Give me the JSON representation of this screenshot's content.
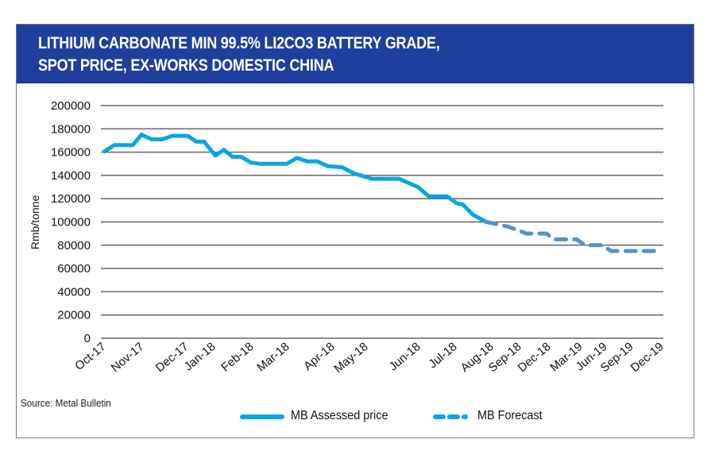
{
  "title": "LITHIUM CARBONATE MIN 99.5% LI2CO3 BATTERY GRADE,\nSPOT PRICE, EX-WORKS DOMESTIC CHINA",
  "source": "Source: Metal Bulletin",
  "colors": {
    "header": "#1f3f9d",
    "assessed": "#0aa6e0",
    "forecast": "#5592cc",
    "grid": "#666666"
  },
  "chart_data": {
    "type": "line",
    "title": "LITHIUM CARBONATE MIN 99.5% LI2CO3 BATTERY GRADE, SPOT PRICE, EX-WORKS DOMESTIC CHINA",
    "xlabel": "",
    "ylabel": "Rmb/tonne",
    "ylim": [
      0,
      200000
    ],
    "yticks": [
      0,
      20000,
      40000,
      60000,
      80000,
      100000,
      120000,
      140000,
      160000,
      180000,
      200000
    ],
    "x_tick_labels": [
      "Oct-17",
      "Nov-17",
      "Dec-17",
      "Jan-18",
      "Feb-18",
      "Mar-18",
      "Apr-18",
      "May-18",
      "Jun-18",
      "Jul-18",
      "Aug-18",
      "Sep-18",
      "Dec-18",
      "Mar-19",
      "Jun-19",
      "Sep-19",
      "Dec-19"
    ],
    "x_tick_dates": [
      "2017-10-01",
      "2017-11-01",
      "2017-12-01",
      "2018-01-01",
      "2018-02-01",
      "2018-03-01",
      "2018-04-01",
      "2018-05-01",
      "2018-06-01",
      "2018-07-01",
      "2018-08-01",
      "2018-09-01",
      "2018-12-01",
      "2019-03-01",
      "2019-06-01",
      "2019-09-01",
      "2019-12-01"
    ],
    "grid": true,
    "legend": "bottom",
    "series": [
      {
        "name": "MB Assessed price",
        "style": "solid",
        "points": [
          [
            "2017-10-01",
            160000
          ],
          [
            "2017-10-10",
            166000
          ],
          [
            "2017-10-25",
            166000
          ],
          [
            "2017-11-01",
            175000
          ],
          [
            "2017-11-08",
            171000
          ],
          [
            "2017-11-15",
            171000
          ],
          [
            "2017-11-22",
            174000
          ],
          [
            "2017-12-03",
            174000
          ],
          [
            "2017-12-13",
            169000
          ],
          [
            "2017-12-22",
            169000
          ],
          [
            "2018-01-03",
            157000
          ],
          [
            "2018-01-10",
            162000
          ],
          [
            "2018-01-17",
            156000
          ],
          [
            "2018-01-24",
            156000
          ],
          [
            "2018-02-01",
            151000
          ],
          [
            "2018-02-08",
            150000
          ],
          [
            "2018-03-01",
            150000
          ],
          [
            "2018-03-08",
            155000
          ],
          [
            "2018-03-15",
            152000
          ],
          [
            "2018-03-22",
            152000
          ],
          [
            "2018-03-29",
            148000
          ],
          [
            "2018-04-10",
            147000
          ],
          [
            "2018-04-20",
            142000
          ],
          [
            "2018-05-05",
            137000
          ],
          [
            "2018-05-21",
            137000
          ],
          [
            "2018-06-01",
            130000
          ],
          [
            "2018-06-10",
            122000
          ],
          [
            "2018-06-25",
            122000
          ],
          [
            "2018-07-03",
            116000
          ],
          [
            "2018-07-08",
            115000
          ],
          [
            "2018-07-17",
            106000
          ],
          [
            "2018-07-28",
            100000
          ]
        ]
      },
      {
        "name": "MB Forecast",
        "style": "dashed",
        "points": [
          [
            "2018-07-28",
            100000
          ],
          [
            "2018-08-20",
            96000
          ],
          [
            "2018-09-25",
            90000
          ],
          [
            "2018-11-25",
            90000
          ],
          [
            "2018-12-20",
            85000
          ],
          [
            "2019-02-20",
            85000
          ],
          [
            "2019-03-20",
            80000
          ],
          [
            "2019-05-20",
            80000
          ],
          [
            "2019-06-25",
            75000
          ],
          [
            "2019-12-01",
            75000
          ]
        ]
      }
    ]
  }
}
